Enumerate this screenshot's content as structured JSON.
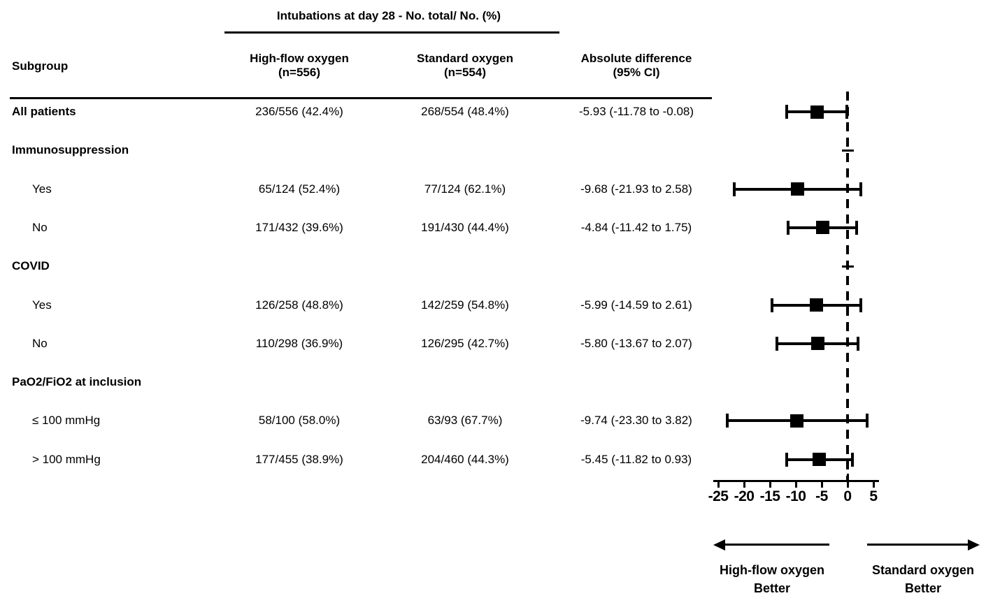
{
  "figure": {
    "title": "Intubations at day 28 - No. total/ No. (%)",
    "subgroup_header": "Subgroup",
    "columns": [
      {
        "line1": "High-flow oxygen",
        "line2": "(n=556)"
      },
      {
        "line1": "Standard oxygen",
        "line2": "(n=554)"
      },
      {
        "line1": "Absolute difference",
        "line2": "(95% CI)"
      }
    ]
  },
  "chart_data": {
    "type": "forest",
    "title": "Intubations at day 28 - No. total/ No. (%)",
    "x_axis": {
      "ticks": [
        -25,
        -20,
        -15,
        -10,
        -5,
        0,
        5
      ],
      "range": [
        -26,
        6
      ],
      "zero_reference_line": 0,
      "grid": false
    },
    "arrow_left_label_line1": "High-flow oxygen",
    "arrow_left_label_line2": "Better",
    "arrow_right_label_line1": "Standard oxygen",
    "arrow_right_label_line2": "Better",
    "rows": [
      {
        "label": "All patients",
        "bold": true,
        "indent": false,
        "col1": "236/556 (42.4%)",
        "col2": "268/554 (48.4%)",
        "col3": "-5.93 (-11.78 to -0.08)",
        "estimate": -5.93,
        "lo": -11.78,
        "hi": -0.08
      },
      {
        "label": "Immunosuppression",
        "bold": true,
        "indent": false,
        "tick": true
      },
      {
        "label": "Yes",
        "bold": false,
        "indent": true,
        "col1": "65/124 (52.4%)",
        "col2": "77/124 (62.1%)",
        "col3": "-9.68 (-21.93 to 2.58)",
        "estimate": -9.68,
        "lo": -21.93,
        "hi": 2.58
      },
      {
        "label": "No",
        "bold": false,
        "indent": true,
        "col1": "171/432 (39.6%)",
        "col2": "191/430 (44.4%)",
        "col3": "-4.84 (-11.42 to 1.75)",
        "estimate": -4.84,
        "lo": -11.42,
        "hi": 1.75
      },
      {
        "label": "COVID",
        "bold": true,
        "indent": false,
        "tick": true
      },
      {
        "label": "Yes",
        "bold": false,
        "indent": true,
        "col1": "126/258 (48.8%)",
        "col2": "142/259 (54.8%)",
        "col3": "-5.99 (-14.59 to 2.61)",
        "estimate": -5.99,
        "lo": -14.59,
        "hi": 2.61
      },
      {
        "label": "No",
        "bold": false,
        "indent": true,
        "col1": "110/298 (36.9%)",
        "col2": "126/295 (42.7%)",
        "col3": "-5.80 (-13.67 to 2.07)",
        "estimate": -5.8,
        "lo": -13.67,
        "hi": 2.07
      },
      {
        "label": "PaO2/FiO2 at inclusion",
        "bold": true,
        "indent": false
      },
      {
        "label": "≤ 100 mmHg",
        "bold": false,
        "indent": true,
        "col1": "58/100 (58.0%)",
        "col2": "63/93 (67.7%)",
        "col3": "-9.74 (-23.30 to 3.82)",
        "estimate": -9.74,
        "lo": -23.3,
        "hi": 3.82
      },
      {
        "label": "> 100 mmHg",
        "bold": false,
        "indent": true,
        "col1": "177/455 (38.9%)",
        "col2": "204/460 (44.3%)",
        "col3": "-5.45 (-11.82 to 0.93)",
        "estimate": -5.45,
        "lo": -11.82,
        "hi": 0.93
      }
    ]
  }
}
